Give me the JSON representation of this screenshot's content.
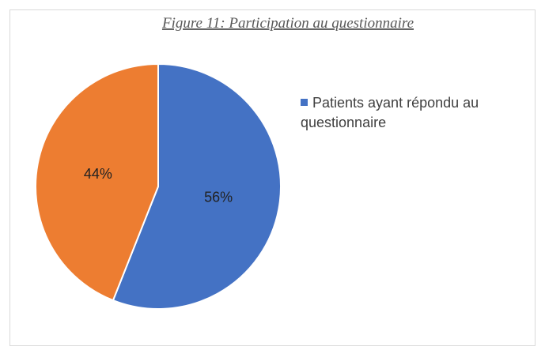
{
  "chart_data": {
    "type": "pie",
    "title": "Figure 11: Participation au questionnaire",
    "categories": [
      "Patients ayant répondu au questionnaire",
      null
    ],
    "values": [
      56,
      44
    ],
    "value_labels": [
      "56%",
      "44%"
    ],
    "colors": [
      "#4472c4",
      "#ed7d31"
    ],
    "legend": "right"
  }
}
